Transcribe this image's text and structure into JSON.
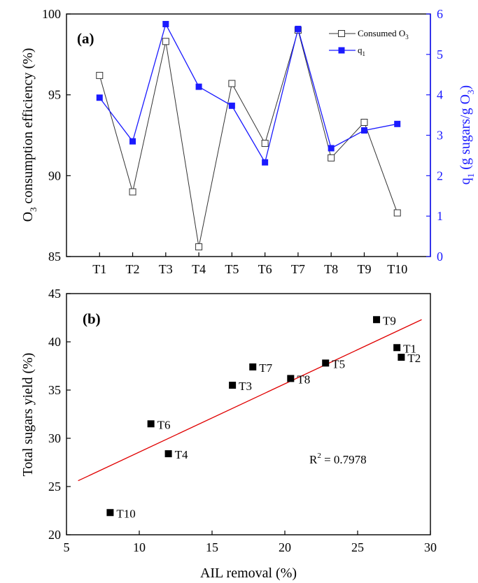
{
  "chart_data": [
    {
      "type": "line",
      "panel_label": "(a)",
      "categories": [
        "T1",
        "T2",
        "T3",
        "T4",
        "T5",
        "T6",
        "T7",
        "T8",
        "T9",
        "T10"
      ],
      "series": [
        {
          "name": "Consumed O3",
          "axis": "left",
          "marker": "open-square",
          "color": "#333333",
          "values": [
            96.2,
            89.0,
            98.3,
            85.6,
            95.7,
            92.0,
            99.0,
            91.1,
            93.3,
            87.7
          ]
        },
        {
          "name": "q1",
          "axis": "right",
          "marker": "filled-square",
          "color": "#1a1aff",
          "values": [
            3.93,
            2.85,
            5.75,
            4.2,
            3.73,
            2.33,
            5.63,
            2.68,
            3.12,
            3.28
          ]
        }
      ],
      "ylabel_left_parts": [
        "O",
        "3",
        " consumption efficiency (%)"
      ],
      "ylabel_right_parts": [
        "q",
        "1",
        " (g sugars/g O",
        "3",
        ")"
      ],
      "ylim_left": [
        85,
        100
      ],
      "yticks_left": [
        85,
        90,
        95,
        100
      ],
      "ylim_right": [
        0,
        6
      ],
      "yticks_right": [
        0,
        1,
        2,
        3,
        4,
        5,
        6
      ],
      "legend_position": "top-right",
      "legend_parts": [
        [
          "Consumed O",
          "3"
        ],
        [
          "q",
          "1"
        ]
      ]
    },
    {
      "type": "scatter",
      "panel_label": "(b)",
      "points": [
        {
          "label": "T1",
          "x": 27.7,
          "y": 39.4
        },
        {
          "label": "T2",
          "x": 28.0,
          "y": 38.4
        },
        {
          "label": "T3",
          "x": 16.4,
          "y": 35.5
        },
        {
          "label": "T4",
          "x": 12.0,
          "y": 28.4
        },
        {
          "label": "T5",
          "x": 22.8,
          "y": 37.8
        },
        {
          "label": "T6",
          "x": 10.8,
          "y": 31.5
        },
        {
          "label": "T7",
          "x": 17.8,
          "y": 37.4
        },
        {
          "label": "T8",
          "x": 20.4,
          "y": 36.2
        },
        {
          "label": "T9",
          "x": 26.3,
          "y": 42.3
        },
        {
          "label": "T10",
          "x": 8.0,
          "y": 22.3
        }
      ],
      "trendline": {
        "color": "#e00000",
        "x": [
          5.8,
          29.4
        ],
        "y": [
          25.6,
          42.3
        ]
      },
      "xlabel": "AIL removal (%)",
      "ylabel": "Total sugars yield (%)",
      "xlim": [
        5,
        30
      ],
      "xticks": [
        5,
        10,
        15,
        20,
        25,
        30
      ],
      "ylim": [
        20,
        45
      ],
      "yticks": [
        20,
        25,
        30,
        35,
        40,
        45
      ],
      "annotation_parts": [
        "R",
        "2",
        " = 0.7978"
      ]
    }
  ]
}
